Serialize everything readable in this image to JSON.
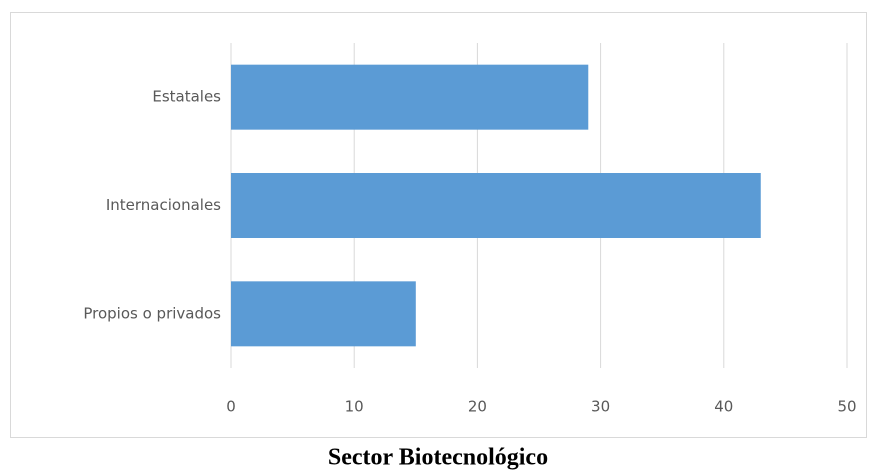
{
  "chart_data": {
    "type": "bar",
    "orientation": "horizontal",
    "title": "Sector Biotecnológico",
    "categories": [
      "Estatales",
      "Internacionales",
      "Propios o privados"
    ],
    "values": [
      29,
      43,
      15
    ],
    "color": "#5b9bd5",
    "xlim": [
      0,
      50
    ],
    "xticks": [
      0,
      10,
      20,
      30,
      40,
      50
    ],
    "grid": true
  }
}
